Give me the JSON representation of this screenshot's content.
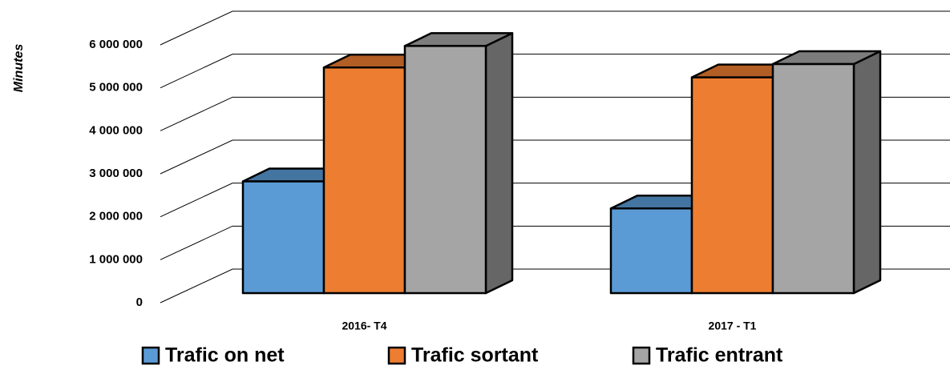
{
  "chart_data": {
    "type": "bar3d",
    "y_axis_label": "Minutes",
    "categories": [
      "2016- T4",
      "2017 - T1"
    ],
    "series": [
      {
        "name": "Trafic on net",
        "color": "#5b9bd5",
        "values": [
          2600000,
          1970000
        ]
      },
      {
        "name": "Trafic sortant",
        "color": "#ed7d31",
        "values": [
          5250000,
          5020000
        ]
      },
      {
        "name": "Trafic entrant",
        "color": "#a5a5a5",
        "values": [
          5750000,
          5330000
        ]
      }
    ],
    "ylim": [
      0,
      6000000
    ],
    "yticks": [
      {
        "value": 0,
        "label": "0"
      },
      {
        "value": 1000000,
        "label": "1 000 000"
      },
      {
        "value": 2000000,
        "label": "2 000 000"
      },
      {
        "value": 3000000,
        "label": "3 000 000"
      },
      {
        "value": 4000000,
        "label": "4 000 000"
      },
      {
        "value": 5000000,
        "label": "5 000 000"
      },
      {
        "value": 6000000,
        "label": "6 000 000"
      }
    ],
    "grid": true,
    "legend": "bottom"
  }
}
